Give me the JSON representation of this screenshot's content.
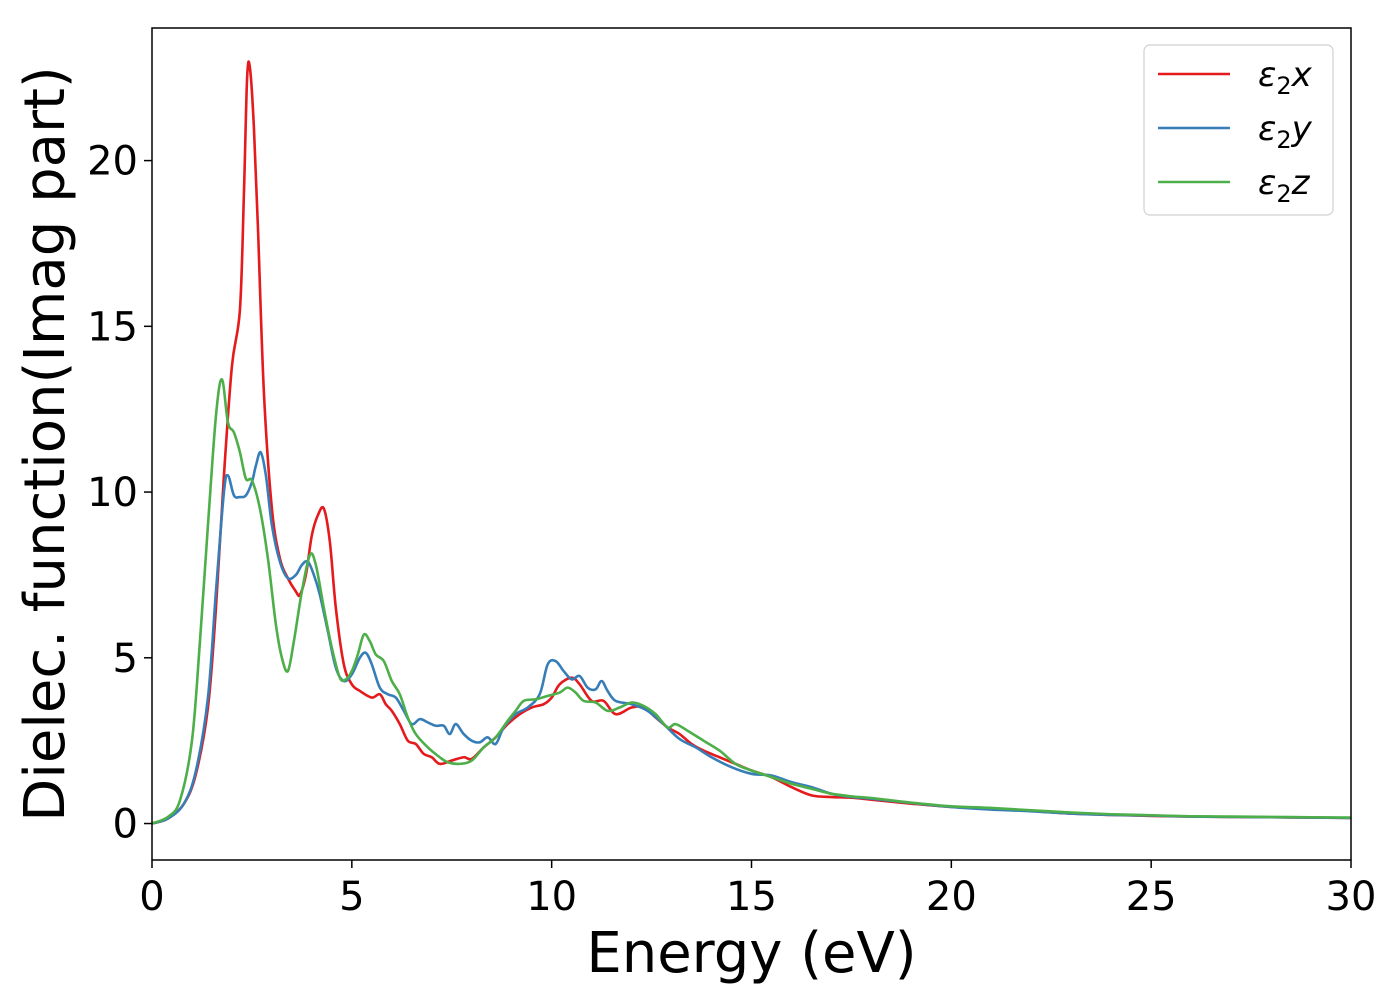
{
  "chart_data": {
    "type": "line",
    "xlabel": "Energy (eV)",
    "ylabel": "Dielec. function(Imag part)",
    "xlim": [
      0,
      30
    ],
    "ylim": [
      -1.1,
      24
    ],
    "xticks": [
      "0",
      "5",
      "10",
      "15",
      "20",
      "25",
      "30"
    ],
    "yticks": [
      "0",
      "5",
      "10",
      "15",
      "20"
    ],
    "grid": false,
    "legend_position": "top-right",
    "series": [
      {
        "name": "ε₂x",
        "legend_base": "ε",
        "legend_sub": "2",
        "legend_var": "x",
        "color": "#e41a1c",
        "points": [
          [
            0,
            0
          ],
          [
            0.4,
            0.15
          ],
          [
            0.8,
            0.6
          ],
          [
            1.1,
            1.5
          ],
          [
            1.4,
            3.5
          ],
          [
            1.6,
            6.5
          ],
          [
            1.8,
            10.5
          ],
          [
            2.0,
            13.8
          ],
          [
            2.2,
            15.5
          ],
          [
            2.3,
            19
          ],
          [
            2.38,
            22.5
          ],
          [
            2.45,
            22.8
          ],
          [
            2.55,
            21
          ],
          [
            2.65,
            18
          ],
          [
            2.8,
            13
          ],
          [
            3.0,
            9.5
          ],
          [
            3.2,
            8
          ],
          [
            3.4,
            7.4
          ],
          [
            3.6,
            7
          ],
          [
            3.7,
            6.9
          ],
          [
            3.85,
            7.5
          ],
          [
            4.0,
            8.7
          ],
          [
            4.15,
            9.3
          ],
          [
            4.3,
            9.5
          ],
          [
            4.45,
            8.5
          ],
          [
            4.6,
            6.5
          ],
          [
            4.8,
            4.8
          ],
          [
            5.0,
            4.2
          ],
          [
            5.2,
            4.0
          ],
          [
            5.5,
            3.8
          ],
          [
            5.7,
            3.9
          ],
          [
            5.85,
            3.6
          ],
          [
            6.0,
            3.4
          ],
          [
            6.2,
            3.0
          ],
          [
            6.4,
            2.5
          ],
          [
            6.6,
            2.4
          ],
          [
            6.8,
            2.1
          ],
          [
            7.0,
            2.0
          ],
          [
            7.2,
            1.8
          ],
          [
            7.5,
            1.9
          ],
          [
            7.8,
            2.0
          ],
          [
            8.0,
            1.95
          ],
          [
            8.3,
            2.3
          ],
          [
            8.6,
            2.6
          ],
          [
            8.9,
            3.0
          ],
          [
            9.2,
            3.3
          ],
          [
            9.5,
            3.5
          ],
          [
            9.8,
            3.6
          ],
          [
            10.0,
            3.8
          ],
          [
            10.2,
            4.2
          ],
          [
            10.5,
            4.4
          ],
          [
            10.7,
            4.2
          ],
          [
            11.0,
            3.7
          ],
          [
            11.3,
            3.7
          ],
          [
            11.6,
            3.3
          ],
          [
            12.0,
            3.5
          ],
          [
            12.3,
            3.5
          ],
          [
            12.6,
            3.2
          ],
          [
            12.9,
            2.9
          ],
          [
            13.2,
            2.7
          ],
          [
            13.5,
            2.4
          ],
          [
            13.8,
            2.2
          ],
          [
            14.2,
            2.0
          ],
          [
            14.6,
            1.8
          ],
          [
            15.0,
            1.6
          ],
          [
            15.5,
            1.4
          ],
          [
            16.0,
            1.1
          ],
          [
            16.5,
            0.85
          ],
          [
            17.0,
            0.8
          ],
          [
            17.5,
            0.78
          ],
          [
            18,
            0.72
          ],
          [
            19,
            0.6
          ],
          [
            20,
            0.5
          ],
          [
            21,
            0.45
          ],
          [
            22,
            0.38
          ],
          [
            23,
            0.3
          ],
          [
            24,
            0.26
          ],
          [
            25,
            0.23
          ],
          [
            26,
            0.21
          ],
          [
            27,
            0.2
          ],
          [
            28,
            0.19
          ],
          [
            29,
            0.18
          ],
          [
            30,
            0.17
          ]
        ]
      },
      {
        "name": "ε₂y",
        "legend_base": "ε",
        "legend_sub": "2",
        "legend_var": "y",
        "color": "#377eb8",
        "points": [
          [
            0,
            0
          ],
          [
            0.4,
            0.15
          ],
          [
            0.8,
            0.6
          ],
          [
            1.1,
            1.6
          ],
          [
            1.4,
            3.8
          ],
          [
            1.6,
            7
          ],
          [
            1.8,
            10
          ],
          [
            1.9,
            10.5
          ],
          [
            2.05,
            9.9
          ],
          [
            2.2,
            9.85
          ],
          [
            2.35,
            9.9
          ],
          [
            2.5,
            10.3
          ],
          [
            2.6,
            10.8
          ],
          [
            2.72,
            11.2
          ],
          [
            2.85,
            10.5
          ],
          [
            3.0,
            9
          ],
          [
            3.2,
            7.9
          ],
          [
            3.4,
            7.4
          ],
          [
            3.6,
            7.5
          ],
          [
            3.75,
            7.8
          ],
          [
            3.9,
            7.9
          ],
          [
            4.05,
            7.5
          ],
          [
            4.2,
            6.9
          ],
          [
            4.4,
            5.8
          ],
          [
            4.6,
            4.7
          ],
          [
            4.8,
            4.3
          ],
          [
            5.0,
            4.5
          ],
          [
            5.2,
            5.0
          ],
          [
            5.35,
            5.15
          ],
          [
            5.5,
            4.8
          ],
          [
            5.7,
            4.1
          ],
          [
            5.9,
            3.9
          ],
          [
            6.1,
            3.8
          ],
          [
            6.3,
            3.4
          ],
          [
            6.5,
            3.0
          ],
          [
            6.7,
            3.15
          ],
          [
            6.9,
            3.05
          ],
          [
            7.1,
            2.95
          ],
          [
            7.3,
            2.95
          ],
          [
            7.45,
            2.7
          ],
          [
            7.6,
            3.0
          ],
          [
            7.8,
            2.7
          ],
          [
            8.0,
            2.5
          ],
          [
            8.2,
            2.45
          ],
          [
            8.4,
            2.6
          ],
          [
            8.6,
            2.4
          ],
          [
            8.8,
            2.9
          ],
          [
            9.1,
            3.3
          ],
          [
            9.4,
            3.5
          ],
          [
            9.7,
            3.9
          ],
          [
            9.9,
            4.8
          ],
          [
            10.1,
            4.9
          ],
          [
            10.3,
            4.6
          ],
          [
            10.5,
            4.35
          ],
          [
            10.7,
            4.45
          ],
          [
            10.9,
            4.1
          ],
          [
            11.1,
            4.05
          ],
          [
            11.25,
            4.3
          ],
          [
            11.4,
            4.0
          ],
          [
            11.6,
            3.7
          ],
          [
            12.0,
            3.6
          ],
          [
            12.4,
            3.4
          ],
          [
            12.8,
            3.0
          ],
          [
            13.2,
            2.55
          ],
          [
            13.6,
            2.3
          ],
          [
            14.0,
            2.0
          ],
          [
            14.5,
            1.7
          ],
          [
            15.0,
            1.5
          ],
          [
            15.5,
            1.45
          ],
          [
            16.0,
            1.25
          ],
          [
            16.5,
            1.1
          ],
          [
            17,
            0.9
          ],
          [
            17.5,
            0.8
          ],
          [
            18,
            0.75
          ],
          [
            19,
            0.62
          ],
          [
            20,
            0.5
          ],
          [
            21,
            0.42
          ],
          [
            22,
            0.37
          ],
          [
            23,
            0.3
          ],
          [
            24,
            0.26
          ],
          [
            25,
            0.24
          ],
          [
            26,
            0.21
          ],
          [
            27,
            0.2
          ],
          [
            28,
            0.19
          ],
          [
            29,
            0.18
          ],
          [
            30,
            0.17
          ]
        ]
      },
      {
        "name": "ε₂z",
        "legend_base": "ε",
        "legend_sub": "2",
        "legend_var": "z",
        "color": "#4daf4a",
        "points": [
          [
            0,
            0
          ],
          [
            0.4,
            0.2
          ],
          [
            0.7,
            0.7
          ],
          [
            1.0,
            2.5
          ],
          [
            1.2,
            5.5
          ],
          [
            1.4,
            9
          ],
          [
            1.6,
            12.3
          ],
          [
            1.75,
            13.4
          ],
          [
            1.9,
            12.1
          ],
          [
            2.05,
            11.8
          ],
          [
            2.2,
            11.2
          ],
          [
            2.35,
            10.4
          ],
          [
            2.5,
            10.35
          ],
          [
            2.7,
            9.5
          ],
          [
            2.9,
            8
          ],
          [
            3.1,
            6
          ],
          [
            3.25,
            5.0
          ],
          [
            3.4,
            4.6
          ],
          [
            3.55,
            5.5
          ],
          [
            3.75,
            7.0
          ],
          [
            3.95,
            8.1
          ],
          [
            4.1,
            7.8
          ],
          [
            4.3,
            6.5
          ],
          [
            4.5,
            5.3
          ],
          [
            4.7,
            4.4
          ],
          [
            4.85,
            4.35
          ],
          [
            5.0,
            4.6
          ],
          [
            5.15,
            5.1
          ],
          [
            5.3,
            5.7
          ],
          [
            5.45,
            5.5
          ],
          [
            5.6,
            5.1
          ],
          [
            5.8,
            4.9
          ],
          [
            6.0,
            4.3
          ],
          [
            6.2,
            3.9
          ],
          [
            6.4,
            3.2
          ],
          [
            6.6,
            2.7
          ],
          [
            6.9,
            2.3
          ],
          [
            7.2,
            2.0
          ],
          [
            7.4,
            1.85
          ],
          [
            7.7,
            1.8
          ],
          [
            8.0,
            1.9
          ],
          [
            8.3,
            2.3
          ],
          [
            8.6,
            2.6
          ],
          [
            8.9,
            3.1
          ],
          [
            9.1,
            3.4
          ],
          [
            9.3,
            3.7
          ],
          [
            9.6,
            3.75
          ],
          [
            9.9,
            3.85
          ],
          [
            10.2,
            3.95
          ],
          [
            10.4,
            4.1
          ],
          [
            10.6,
            3.95
          ],
          [
            10.8,
            3.7
          ],
          [
            11.1,
            3.65
          ],
          [
            11.4,
            3.4
          ],
          [
            11.7,
            3.5
          ],
          [
            12.0,
            3.65
          ],
          [
            12.3,
            3.55
          ],
          [
            12.6,
            3.3
          ],
          [
            12.9,
            2.9
          ],
          [
            13.1,
            3.0
          ],
          [
            13.4,
            2.8
          ],
          [
            13.8,
            2.5
          ],
          [
            14.2,
            2.2
          ],
          [
            14.6,
            1.8
          ],
          [
            15.0,
            1.6
          ],
          [
            15.5,
            1.4
          ],
          [
            16.0,
            1.2
          ],
          [
            16.5,
            1.05
          ],
          [
            17,
            0.9
          ],
          [
            17.5,
            0.82
          ],
          [
            18,
            0.77
          ],
          [
            19,
            0.63
          ],
          [
            20,
            0.52
          ],
          [
            21,
            0.47
          ],
          [
            22,
            0.4
          ],
          [
            23,
            0.33
          ],
          [
            24,
            0.28
          ],
          [
            25,
            0.25
          ],
          [
            26,
            0.22
          ],
          [
            27,
            0.21
          ],
          [
            28,
            0.2
          ],
          [
            29,
            0.19
          ],
          [
            30,
            0.18
          ]
        ]
      }
    ]
  }
}
